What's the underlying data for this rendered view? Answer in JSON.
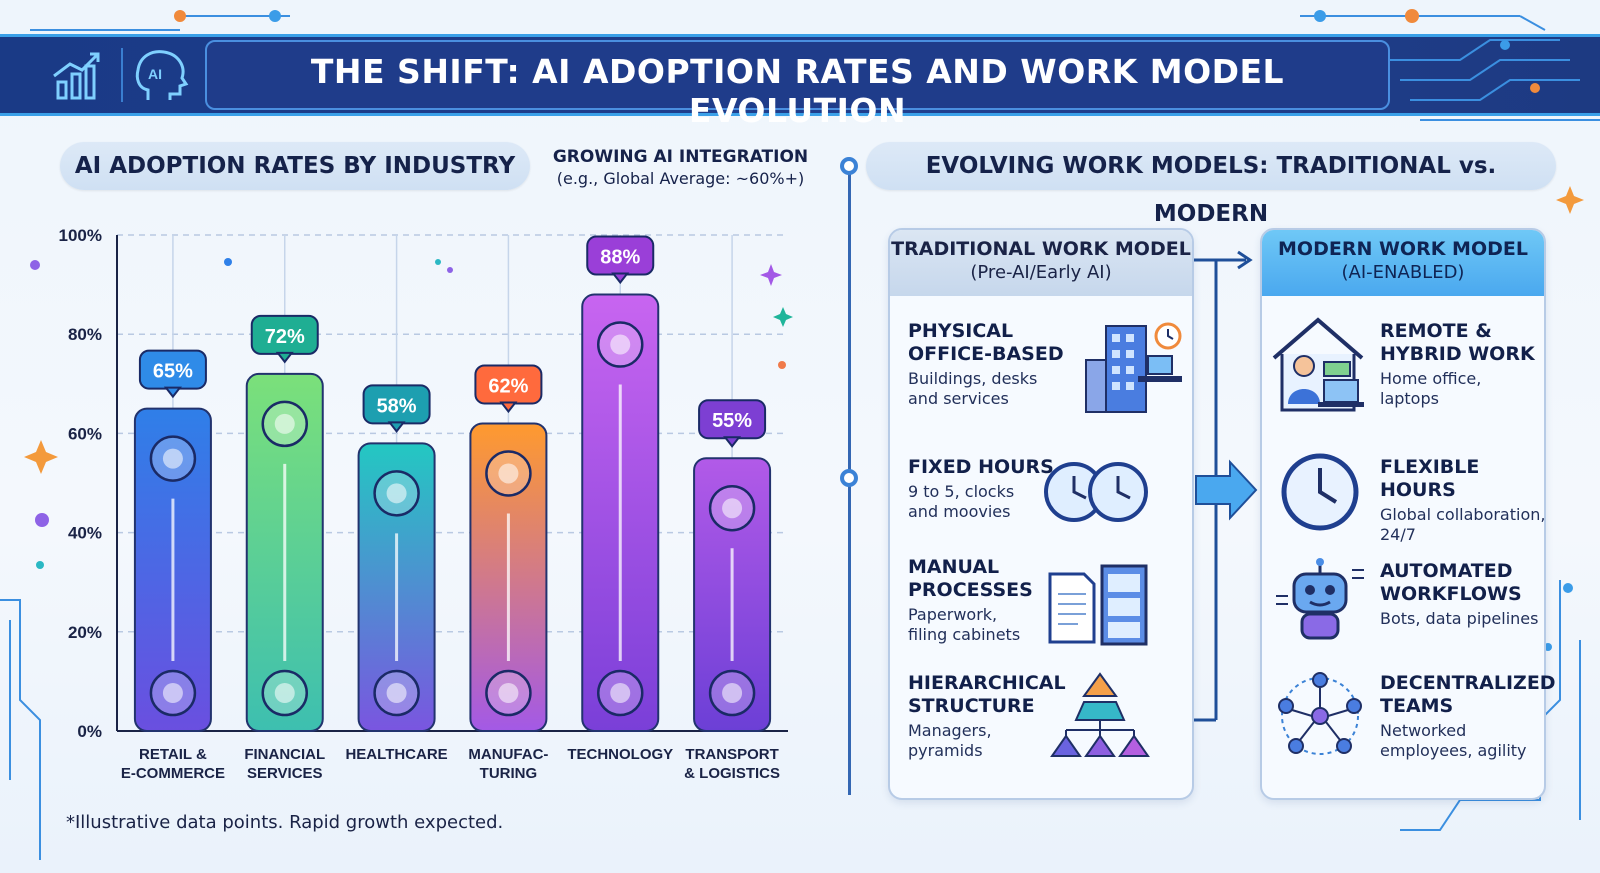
{
  "header": {
    "title": "THE SHIFT: AI ADOPTION RATES AND WORK MODEL EVOLUTION",
    "icons": [
      "bar-chart-icon",
      "ai-head-icon"
    ]
  },
  "left_section": {
    "title": "AI ADOPTION RATES BY INDUSTRY",
    "integration_title": "GROWING AI INTEGRATION",
    "integration_sub": "(e.g., Global Average: ~60%+)",
    "footnote": "*Illustrative data points. Rapid growth expected."
  },
  "chart_data": {
    "type": "bar",
    "categories": [
      [
        "RETAIL &",
        "E-COMMERCE"
      ],
      [
        "FINANCIAL",
        "SERVICES"
      ],
      [
        "HEALTHCARE"
      ],
      [
        "MANUFAC-",
        "TURING"
      ],
      [
        "TECHNOLOGY"
      ],
      [
        "TRANSPORT",
        "& LOGISTICS"
      ]
    ],
    "values": [
      65,
      72,
      58,
      62,
      88,
      55
    ],
    "value_labels": [
      "65%",
      "72%",
      "58%",
      "62%",
      "88%",
      "55%"
    ],
    "yticks": [
      "0%",
      "20%",
      "40%",
      "60%",
      "80%",
      "100%"
    ],
    "ylim": [
      0,
      100
    ],
    "grid": true,
    "bar_icons": [
      "shopping-cart-icon",
      "money-bag-icon",
      "heart-cross-icon",
      "factory-icon",
      "rocket-icon",
      "delivery-truck-icon"
    ],
    "colors": [
      [
        "#2f7fe8",
        "#6a4fe0"
      ],
      [
        "#7be07a",
        "#3dbfb0"
      ],
      [
        "#23c8c2",
        "#7a55e0"
      ],
      [
        "#ff9a2e",
        "#a359e6"
      ],
      [
        "#c865f0",
        "#7a3fd8"
      ],
      [
        "#b25ae8",
        "#6c3fd6"
      ]
    ],
    "badge_colors": [
      "#2f8be8",
      "#1fae93",
      "#1d9fb0",
      "#ff6a3d",
      "#9a3fd8",
      "#7d3fd3"
    ]
  },
  "right_section": {
    "title": "EVOLVING WORK MODELS: TRADITIONAL vs. MODERN",
    "traditional": {
      "title": "TRADITIONAL WORK MODEL",
      "subtitle": "(Pre-AI/Early AI)",
      "items": [
        {
          "title": [
            "PHYSICAL",
            "OFFICE-BASED"
          ],
          "desc": [
            "Buildings, desks",
            "and services"
          ],
          "icon": "office-building-icon"
        },
        {
          "title": [
            "FIXED HOURS"
          ],
          "desc": [
            "9 to 5, clocks",
            "and moovies"
          ],
          "icon": "clocks-icon"
        },
        {
          "title": [
            "MANUAL",
            "PROCESSES"
          ],
          "desc": [
            "Paperwork,",
            "filing cabinets"
          ],
          "icon": "filing-cabinet-icon"
        },
        {
          "title": [
            "HIERARCHICAL",
            "STRUCTURE"
          ],
          "desc": [
            "Managers,",
            "pyramids"
          ],
          "icon": "pyramid-hierarchy-icon"
        }
      ]
    },
    "modern": {
      "title": "MODERN WORK MODEL",
      "subtitle": "(AI-ENABLED)",
      "items": [
        {
          "title": [
            "REMOTE &",
            "HYBRID WORK"
          ],
          "desc": [
            "Home office,",
            "laptops"
          ],
          "icon": "home-laptop-icon"
        },
        {
          "title": [
            "FLEXIBLE HOURS"
          ],
          "desc": [
            "Global collaboration,",
            "24/7"
          ],
          "icon": "clock-icon"
        },
        {
          "title": [
            "AUTOMATED",
            "WORKFLOWS"
          ],
          "desc": [
            "Bots, data pipelines"
          ],
          "icon": "robot-icon"
        },
        {
          "title": [
            "DECENTRALIZED",
            "TEAMS"
          ],
          "desc": [
            "Networked",
            "employees, agility"
          ],
          "icon": "network-team-icon"
        }
      ]
    }
  }
}
